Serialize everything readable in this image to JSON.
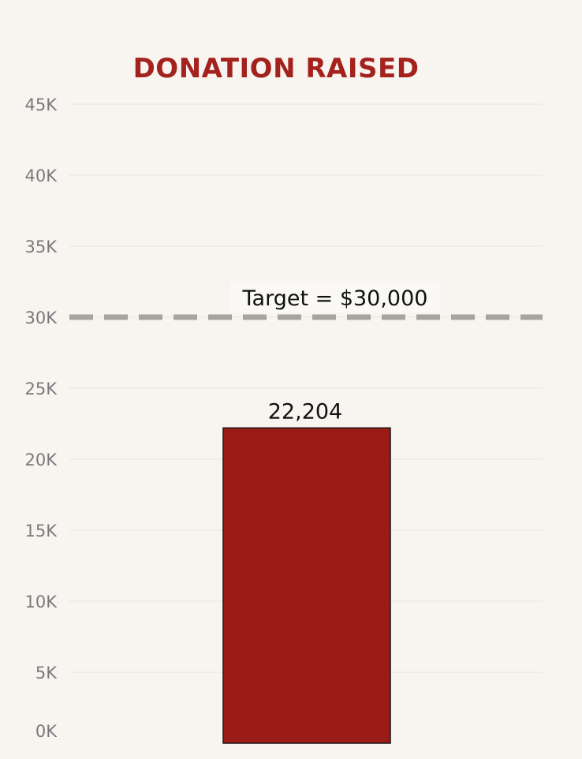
{
  "chart_data": {
    "type": "bar",
    "title": "DONATION RAISED",
    "categories": [
      ""
    ],
    "values": [
      22204
    ],
    "value_labels": [
      "22,204"
    ],
    "xlabel": "",
    "ylabel": "",
    "ylim": [
      0,
      45000
    ],
    "y_ticks": [
      0,
      5000,
      10000,
      15000,
      20000,
      25000,
      30000,
      35000,
      40000,
      45000
    ],
    "y_tick_labels": [
      "0K",
      "5K",
      "10K",
      "15K",
      "20K",
      "25K",
      "30K",
      "35K",
      "40K",
      "45K"
    ],
    "reference_line": {
      "value": 30000,
      "label": "Target = $30,000",
      "style": "dashed"
    },
    "grid": true,
    "legend": "none",
    "colors": {
      "bar": "#9b1c16",
      "title": "#a3221d",
      "reference_line": "#a8a39d",
      "tick_label": "#7a7a7a",
      "gridline": "#efeae4",
      "background": "#f8f5f1"
    }
  }
}
